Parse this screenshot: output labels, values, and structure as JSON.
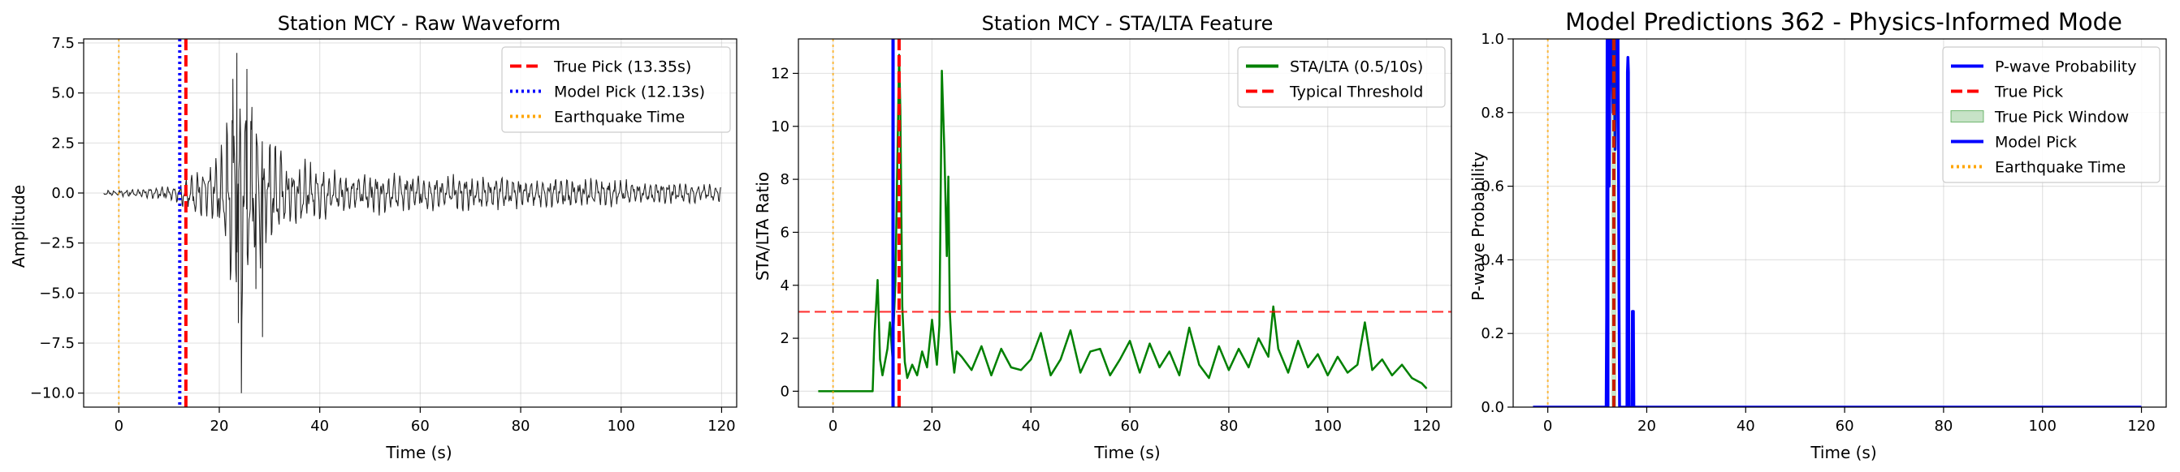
{
  "chart_data": [
    {
      "type": "line",
      "title": "Station MCY - Raw Waveform",
      "xlabel": "Time (s)",
      "ylabel": "Amplitude",
      "xlim": [
        -7,
        123
      ],
      "ylim": [
        -10.7,
        7.7
      ],
      "xticks": [
        0,
        20,
        40,
        60,
        80,
        100,
        120
      ],
      "yticks": [
        -10.0,
        -7.5,
        -5.0,
        -2.5,
        0.0,
        2.5,
        5.0,
        7.5
      ],
      "ytick_labels": [
        "−10.0",
        "−7.5",
        "−5.0",
        "−2.5",
        "0.0",
        "2.5",
        "5.0",
        "7.5"
      ],
      "xtick_labels": [
        "0",
        "20",
        "40",
        "60",
        "80",
        "100",
        "120"
      ],
      "grid": true,
      "legend_position": "upper right",
      "series": [
        {
          "name": "Waveform",
          "color": "#000000",
          "kind": "waveform",
          "x_range": [
            -3,
            120
          ],
          "envelope": [
            [
              -3,
              0.12
            ],
            [
              5,
              0.25
            ],
            [
              10,
              0.35
            ],
            [
              12.13,
              0.5
            ],
            [
              13.35,
              0.9
            ],
            [
              14,
              1.2
            ],
            [
              18,
              1.4
            ],
            [
              21,
              2.5
            ],
            [
              22,
              5.5
            ],
            [
              23.5,
              7.0
            ],
            [
              24,
              7.0
            ],
            [
              25,
              6.2
            ],
            [
              27,
              4.2
            ],
            [
              30,
              3.0
            ],
            [
              33,
              2.0
            ],
            [
              37,
              1.6
            ],
            [
              45,
              1.1
            ],
            [
              60,
              0.95
            ],
            [
              80,
              0.85
            ],
            [
              100,
              0.7
            ],
            [
              120,
              0.45
            ]
          ],
          "extremes": [
            [
              23.5,
              7.0
            ],
            [
              23.8,
              -6.5
            ],
            [
              24.4,
              -10.0
            ],
            [
              22.7,
              5.7
            ],
            [
              25.5,
              6.2
            ],
            [
              26.5,
              4.3
            ],
            [
              27.3,
              -4.8
            ],
            [
              28.6,
              -7.2
            ]
          ]
        },
        {
          "name": "True Pick (13.35s)",
          "kind": "vline",
          "x": 13.35,
          "color": "#ff0000",
          "style": "dashed"
        },
        {
          "name": "Model Pick (12.13s)",
          "kind": "vline",
          "x": 12.13,
          "color": "#0000ff",
          "style": "dotted"
        },
        {
          "name": "Earthquake Time",
          "kind": "vline",
          "x": 0,
          "color": "#ffa500",
          "style": "dotted"
        }
      ],
      "legend": [
        {
          "label": "True Pick (13.35s)",
          "color": "#ff0000",
          "style": "dashed"
        },
        {
          "label": "Model Pick (12.13s)",
          "color": "#0000ff",
          "style": "dotted"
        },
        {
          "label": "Earthquake Time",
          "color": "#ffa500",
          "style": "dotted"
        }
      ]
    },
    {
      "type": "line",
      "title": "Station MCY - STA/LTA Feature",
      "xlabel": "Time (s)",
      "ylabel": "STA/LTA Ratio",
      "xlim": [
        -7,
        125
      ],
      "ylim": [
        -0.6,
        13.3
      ],
      "xticks": [
        0,
        20,
        40,
        60,
        80,
        100,
        120
      ],
      "yticks": [
        0,
        2,
        4,
        6,
        8,
        10,
        12
      ],
      "xtick_labels": [
        "0",
        "20",
        "40",
        "60",
        "80",
        "100",
        "120"
      ],
      "ytick_labels": [
        "0",
        "2",
        "4",
        "6",
        "8",
        "10",
        "12"
      ],
      "grid": true,
      "legend_position": "upper right",
      "series": [
        {
          "name": "STA/LTA (0.5/10s)",
          "color": "#008000",
          "kind": "line",
          "x": [
            -3,
            0,
            2,
            4,
            6,
            8,
            8.4,
            9,
            9.5,
            10,
            11,
            11.5,
            12,
            12.6,
            13.35,
            13.6,
            14,
            14.5,
            15,
            16,
            17,
            18,
            19,
            20,
            21,
            21.5,
            22,
            22.5,
            23,
            23.3,
            23.6,
            24,
            24.5,
            25,
            26,
            28,
            30,
            32,
            34,
            36,
            38,
            40,
            42,
            44,
            46,
            48,
            50,
            52,
            54,
            56,
            58,
            60,
            62,
            64,
            66,
            68,
            70,
            72,
            74,
            76,
            78,
            80,
            82,
            84,
            86,
            88,
            89,
            90,
            92,
            94,
            96,
            98,
            100,
            102,
            104,
            106,
            107.5,
            109,
            111,
            113,
            115,
            117,
            119,
            120
          ],
          "y": [
            0,
            0,
            0,
            0,
            0,
            0,
            2.2,
            4.2,
            1.2,
            0.6,
            1.6,
            2.6,
            1.3,
            4.1,
            12.7,
            10.6,
            3.2,
            1.1,
            0.5,
            1.0,
            0.6,
            1.5,
            0.9,
            2.7,
            1.0,
            2.5,
            12.1,
            9.1,
            5.1,
            8.1,
            3.0,
            1.6,
            0.7,
            1.5,
            1.3,
            0.8,
            1.7,
            0.6,
            1.6,
            0.9,
            0.8,
            1.2,
            2.2,
            0.6,
            1.2,
            2.3,
            0.7,
            1.5,
            1.6,
            0.6,
            1.2,
            1.9,
            0.7,
            1.8,
            0.9,
            1.5,
            0.6,
            2.4,
            1.0,
            0.5,
            1.7,
            0.8,
            1.6,
            0.9,
            2.0,
            1.3,
            3.2,
            1.6,
            0.7,
            1.9,
            0.9,
            1.4,
            0.6,
            1.3,
            0.7,
            1.0,
            2.6,
            0.8,
            1.2,
            0.6,
            1.0,
            0.5,
            0.3,
            0.1
          ]
        },
        {
          "name": "Typical Threshold",
          "kind": "hline",
          "y": 3,
          "color": "#ff0000",
          "style": "dashed"
        },
        {
          "name": "True Pick",
          "kind": "vline",
          "x": 13.35,
          "color": "#ff0000",
          "style": "dashed"
        },
        {
          "name": "Model Pick",
          "kind": "vline",
          "x": 12.13,
          "color": "#0000ff",
          "style": "solid"
        },
        {
          "name": "Earthquake Time",
          "kind": "vline",
          "x": 0,
          "color": "#ffa500",
          "style": "dotted"
        }
      ],
      "legend": [
        {
          "label": "STA/LTA (0.5/10s)",
          "color": "#008000",
          "style": "solid"
        },
        {
          "label": "Typical Threshold",
          "color": "#ff0000",
          "style": "dashed"
        }
      ]
    },
    {
      "type": "line",
      "title": "Model Predictions 362 - Physics-Informed Mode",
      "xlabel": "Time (s)",
      "ylabel": "P-wave Probability",
      "xlim": [
        -7,
        125
      ],
      "ylim": [
        0,
        1
      ],
      "xticks": [
        0,
        20,
        40,
        60,
        80,
        100,
        120
      ],
      "yticks": [
        0.0,
        0.2,
        0.4,
        0.6,
        0.8,
        1.0
      ],
      "xtick_labels": [
        "0",
        "20",
        "40",
        "60",
        "80",
        "100",
        "120"
      ],
      "ytick_labels": [
        "0.0",
        "0.2",
        "0.4",
        "0.6",
        "0.8",
        "1.0"
      ],
      "grid": true,
      "legend_position": "upper right",
      "series": [
        {
          "name": "P-wave Probability",
          "color": "#0000ff",
          "kind": "line",
          "x": [
            -3,
            11.8,
            11.9,
            12.0,
            12.1,
            12.2,
            12.4,
            12.6,
            12.8,
            13.0,
            13.2,
            13.4,
            13.6,
            13.8,
            14.0,
            14.2,
            14.4,
            14.5,
            16.0,
            16.1,
            16.2,
            16.3,
            16.4,
            17.0,
            17.1,
            17.2,
            17.3,
            17.4,
            120
          ],
          "y": [
            0,
            0,
            0.25,
            1.0,
            0.45,
            1.0,
            0.6,
            1.0,
            0.9,
            1.0,
            0.8,
            1.0,
            0.7,
            1.0,
            0.95,
            1.0,
            0.3,
            0,
            0,
            0.91,
            0.95,
            0.91,
            0,
            0,
            0.26,
            0.26,
            0.26,
            0,
            0
          ]
        },
        {
          "name": "True Pick",
          "kind": "vline",
          "x": 13.35,
          "color": "#ff0000",
          "style": "dashed"
        },
        {
          "name": "True Pick Window",
          "kind": "band",
          "x0": 12.85,
          "x1": 13.85,
          "color": "#008000"
        },
        {
          "name": "Model Pick",
          "kind": "vline",
          "x": 12.13,
          "color": "#0000ff",
          "style": "solid"
        },
        {
          "name": "Earthquake Time",
          "kind": "vline",
          "x": 0,
          "color": "#ffa500",
          "style": "dotted"
        }
      ],
      "legend": [
        {
          "label": "P-wave Probability",
          "color": "#0000ff",
          "style": "solid"
        },
        {
          "label": "True Pick",
          "color": "#ff0000",
          "style": "dashed"
        },
        {
          "label": "True Pick Window",
          "color": "#008000",
          "style": "patch"
        },
        {
          "label": "Model Pick",
          "color": "#0000ff",
          "style": "solid"
        },
        {
          "label": "Earthquake Time",
          "color": "#ffa500",
          "style": "dotted"
        }
      ]
    }
  ]
}
